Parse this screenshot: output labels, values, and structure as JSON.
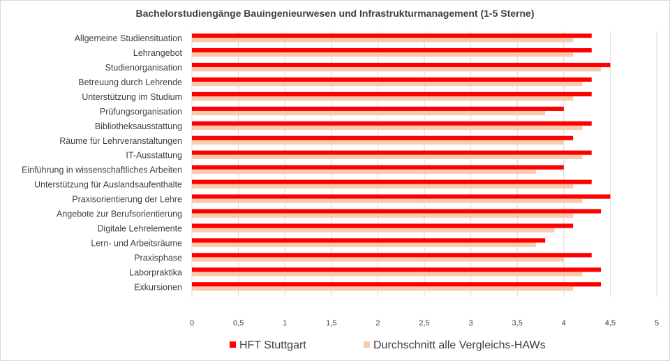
{
  "chart_data": {
    "type": "bar",
    "orientation": "horizontal",
    "title": "Bachelorstudiengänge Bauingenieurwesen und Infrastrukturmanagement (1-5 Sterne)",
    "xlabel": "",
    "ylabel": "",
    "xlim": [
      0,
      5
    ],
    "ticks": [
      "0",
      "0,5",
      "1",
      "1,5",
      "2",
      "2,5",
      "3",
      "3,5",
      "4",
      "4,5",
      "5"
    ],
    "tick_values": [
      0,
      0.5,
      1,
      1.5,
      2,
      2.5,
      3,
      3.5,
      4,
      4.5,
      5
    ],
    "grid": true,
    "legend_position": "bottom",
    "categories": [
      "Allgemeine Studiensituation",
      "Lehrangebot",
      "Studienorganisation",
      "Betreuung durch Lehrende",
      "Unterstützung im Studium",
      "Prüfungsorganisation",
      "Bibliotheksausstattung",
      "Räume für Lehrveranstaltungen",
      "IT-Ausstattung",
      "Einführung in wissenschaftliches Arbeiten",
      "Unterstützung für Auslandsaufenthalte",
      "Praxisorientierung der Lehre",
      "Angebote zur Berufsorientierung",
      "Digitale Lehrelemente",
      "Lern- und Arbeitsräume",
      "Praxisphase",
      "Laborpraktika",
      "Exkursionen"
    ],
    "series": [
      {
        "name": "HFT Stuttgart",
        "color": "#ff0000",
        "values": [
          4.3,
          4.3,
          4.5,
          4.3,
          4.3,
          4.0,
          4.3,
          4.1,
          4.3,
          4.0,
          4.3,
          4.5,
          4.4,
          4.1,
          3.8,
          4.3,
          4.4,
          4.4
        ]
      },
      {
        "name": "Durchschnitt alle Vergleichs-HAWs",
        "color": "#f8cbad",
        "values": [
          4.1,
          4.1,
          4.4,
          4.2,
          4.1,
          3.8,
          4.2,
          4.0,
          4.2,
          3.7,
          4.1,
          4.2,
          4.1,
          3.9,
          3.7,
          4.0,
          4.2,
          4.1
        ]
      }
    ]
  }
}
